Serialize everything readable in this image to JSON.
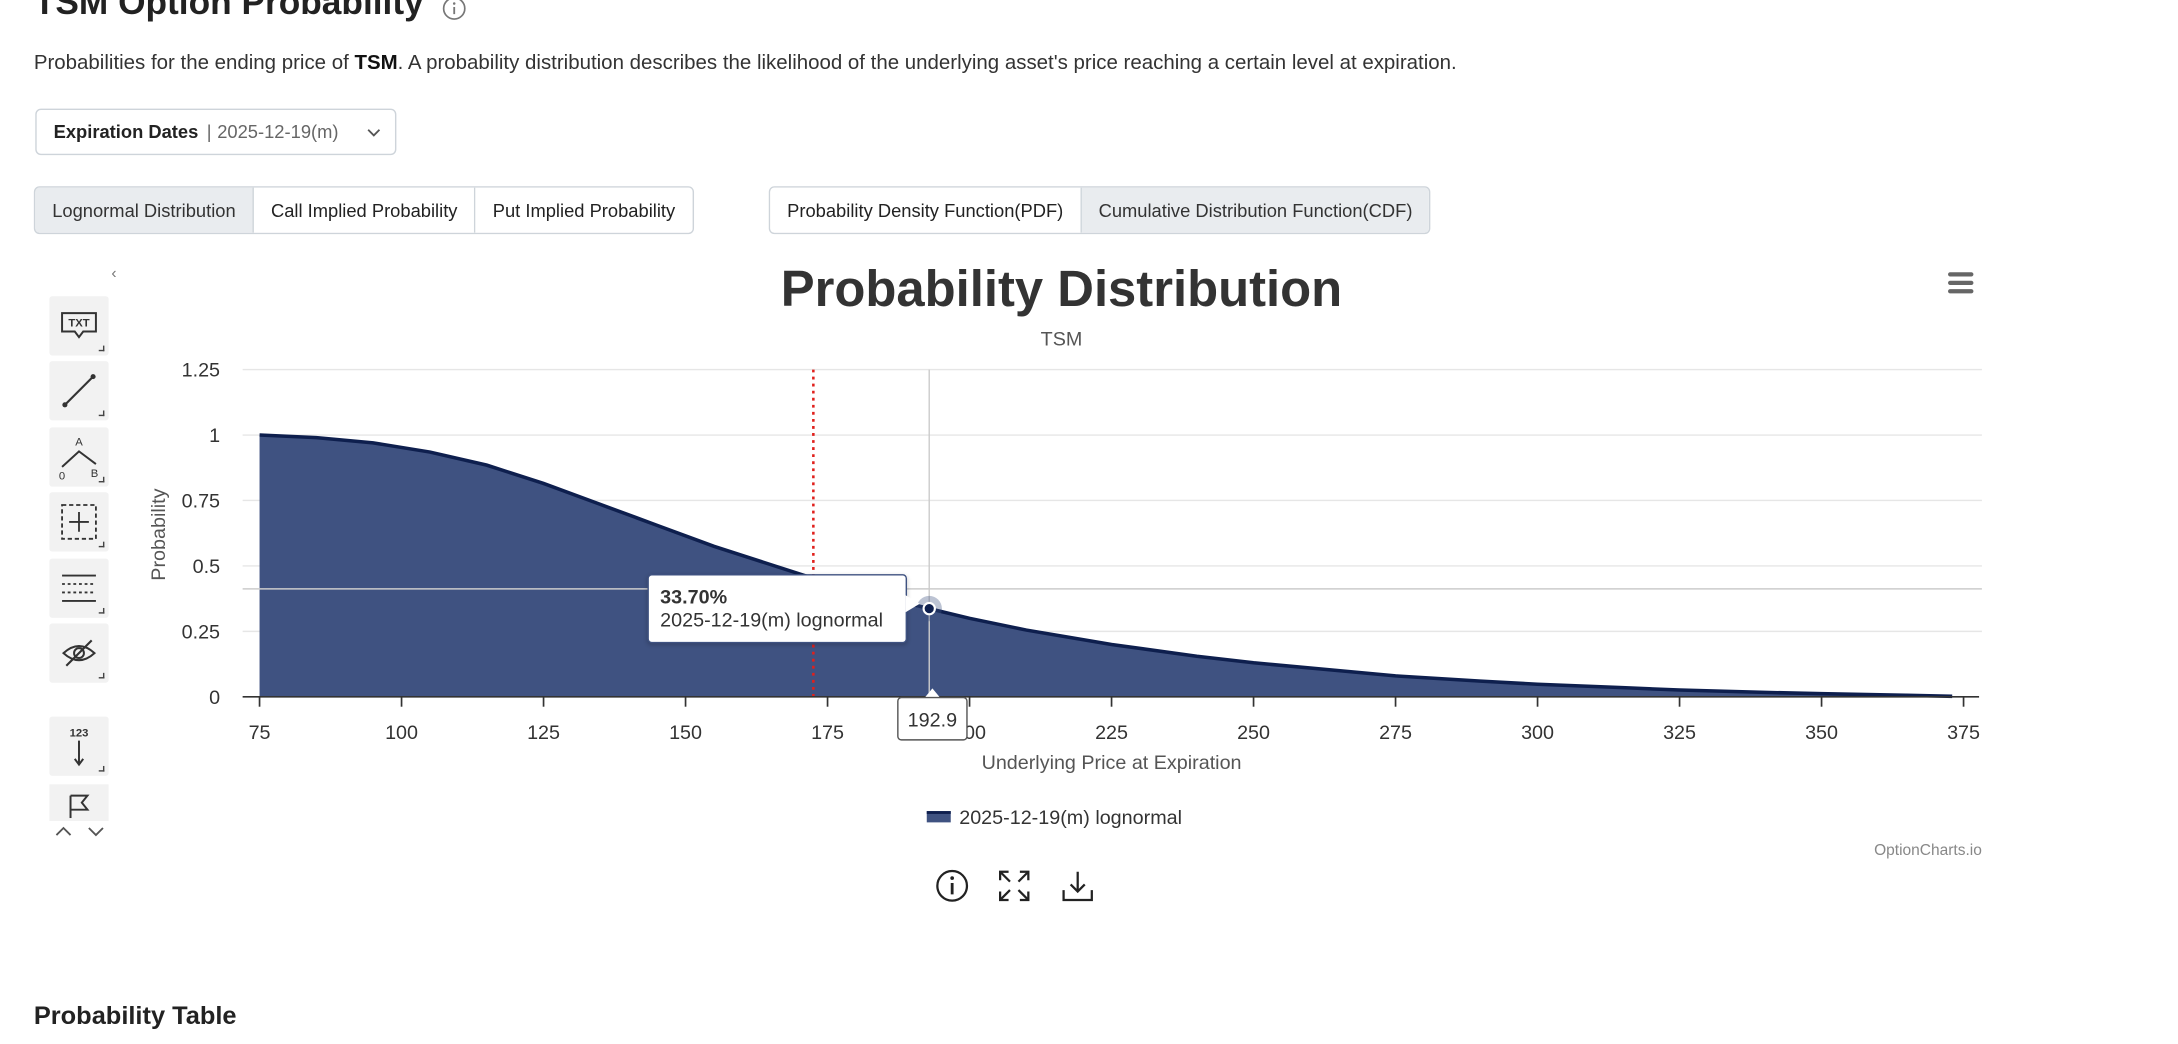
{
  "page": {
    "title": "TSM Option Probability",
    "description_prefix": "Probabilities for the ending price of ",
    "description_ticker": "TSM",
    "description_suffix": ". A probability distribution describes the likelihood of the underlying asset's price reaching a certain level at expiration.",
    "section_title": "Probability Table"
  },
  "expiration": {
    "label": "Expiration Dates",
    "separator": "|",
    "value": "2025-12-19(m)"
  },
  "model_tabs": [
    {
      "label": "Lognormal Distribution",
      "active": true
    },
    {
      "label": "Call Implied Probability",
      "active": false
    },
    {
      "label": "Put Implied Probability",
      "active": false
    }
  ],
  "function_tabs": [
    {
      "label": "Probability Density Function(PDF)",
      "active": false
    },
    {
      "label": "Cumulative Distribution Function(CDF)",
      "active": true
    }
  ],
  "toolbar": {
    "tools": [
      "annotation-text-icon",
      "line-icon",
      "fibonacci-icon",
      "measure-icon",
      "horizontal-lines-icon",
      "hide-icon",
      "indicator-123-icon",
      "flag-icon"
    ],
    "collapse": "‹",
    "text_tool_label": "TXT",
    "number_tool_label": "123",
    "fib_labels": [
      "A",
      "0",
      "B"
    ]
  },
  "tooltip": {
    "value": "33.70%",
    "series": "2025-12-19(m) lognormal"
  },
  "crosshair": {
    "x_label": "192.9"
  },
  "credits": "OptionCharts.io",
  "colors": {
    "series_fill": "#3f5281",
    "series_line": "#0e1f4e",
    "current_price_line": "#e0201c"
  },
  "chart_data": {
    "type": "area",
    "title": "Probability Distribution",
    "subtitle": "TSM",
    "xlabel": "Underlying Price at Expiration",
    "ylabel": "Probability",
    "xlim": [
      75,
      375
    ],
    "ylim": [
      0,
      1.25
    ],
    "x_ticks": [
      75,
      100,
      125,
      150,
      175,
      200,
      225,
      250,
      275,
      300,
      325,
      350,
      375
    ],
    "y_ticks": [
      0,
      0.25,
      0.5,
      0.75,
      1,
      1.25
    ],
    "y_tick_labels": [
      "0",
      "0.25",
      "0.5",
      "0.75",
      "1",
      "1.25"
    ],
    "grid": true,
    "legend": "bottom-center",
    "series": [
      {
        "name": "2025-12-19(m) lognormal",
        "x": [
          75,
          85,
          95,
          105,
          115,
          125,
          135,
          145,
          155,
          165,
          175,
          185,
          192.9,
          200,
          210,
          225,
          240,
          250,
          265,
          275,
          290,
          300,
          315,
          325,
          340,
          350,
          365,
          373
        ],
        "y": [
          1.0,
          0.99,
          0.97,
          0.935,
          0.885,
          0.815,
          0.735,
          0.655,
          0.575,
          0.505,
          0.435,
          0.38,
          0.337,
          0.3,
          0.255,
          0.2,
          0.155,
          0.13,
          0.1,
          0.08,
          0.06,
          0.048,
          0.035,
          0.026,
          0.017,
          0.012,
          0.006,
          0.002
        ]
      }
    ],
    "current_price": 172.5,
    "highlight_point": {
      "x": 192.9,
      "y": 0.337
    }
  }
}
